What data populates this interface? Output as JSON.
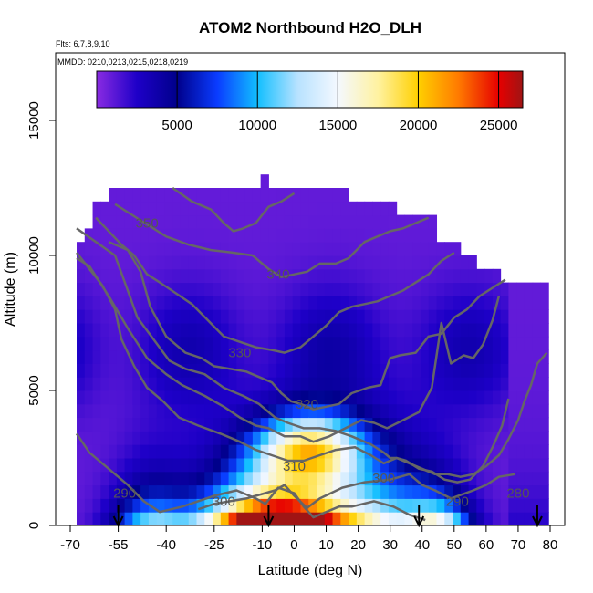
{
  "title": "ATOM2 Northbound H2O_DLH",
  "flights_label": "Flts: 6,7,8,9,10",
  "dates_label": "MMDD: 0210,0213,0215,0218,0219",
  "colors": {
    "purple": "#8a2be2",
    "navy": "#00008b",
    "blue": "#0a3cff",
    "cyan": "#12bfff",
    "white": "#f4f8ff",
    "yellow": "#ffe600",
    "orange": "#ff8c00",
    "red": "#e60000",
    "darkred": "#a01414",
    "contour": "#666666"
  },
  "chart_data": {
    "type": "heatmap",
    "title": "ATOM2 Northbound H2O_DLH",
    "xlabel": "Latitude (deg N)",
    "ylabel": "Altitude (m)",
    "xlim": [
      -70,
      80
    ],
    "ylim": [
      0,
      17500
    ],
    "xticks": [
      -70,
      -55,
      -40,
      -25,
      -10,
      0,
      10,
      20,
      30,
      40,
      50,
      60,
      70,
      80
    ],
    "yticks": [
      0,
      5000,
      10000,
      15000
    ],
    "colorbar": {
      "range": [
        0,
        26500
      ],
      "ticks": [
        5000,
        10000,
        15000,
        20000,
        25000
      ],
      "stops": [
        {
          "v": 0,
          "c": "#8a2be2"
        },
        {
          "v": 2500,
          "c": "#1e00c8"
        },
        {
          "v": 5000,
          "c": "#00008b"
        },
        {
          "v": 7500,
          "c": "#0a3cff"
        },
        {
          "v": 10000,
          "c": "#12bfff"
        },
        {
          "v": 12500,
          "c": "#b8e2ff"
        },
        {
          "v": 15000,
          "c": "#f4f8ff"
        },
        {
          "v": 17500,
          "c": "#fff2a0"
        },
        {
          "v": 20000,
          "c": "#ffd000"
        },
        {
          "v": 22500,
          "c": "#ff7a00"
        },
        {
          "v": 25000,
          "c": "#e60000"
        },
        {
          "v": 26500,
          "c": "#a01414"
        }
      ]
    },
    "flight_markers_lat": [
      -55,
      -8,
      39,
      76
    ],
    "contours": [
      {
        "label": "290",
        "label_lat": -53,
        "label_alt": 1200
      },
      {
        "label": "300",
        "label_lat": -22,
        "label_alt": 900
      },
      {
        "label": "300",
        "label_lat": 28,
        "label_alt": 1750
      },
      {
        "label": "290",
        "label_lat": 51,
        "label_alt": 900
      },
      {
        "label": "310",
        "label_lat": 0,
        "label_alt": 2200
      },
      {
        "label": "320",
        "label_lat": 4,
        "label_alt": 4500
      },
      {
        "label": "330",
        "label_lat": -17,
        "label_alt": 6400
      },
      {
        "label": "340",
        "label_lat": -5,
        "label_alt": 9300
      },
      {
        "label": "280",
        "label_lat": 70,
        "label_alt": 1200
      },
      {
        "label": "350",
        "label_lat": -46,
        "label_alt": 11200
      }
    ]
  }
}
